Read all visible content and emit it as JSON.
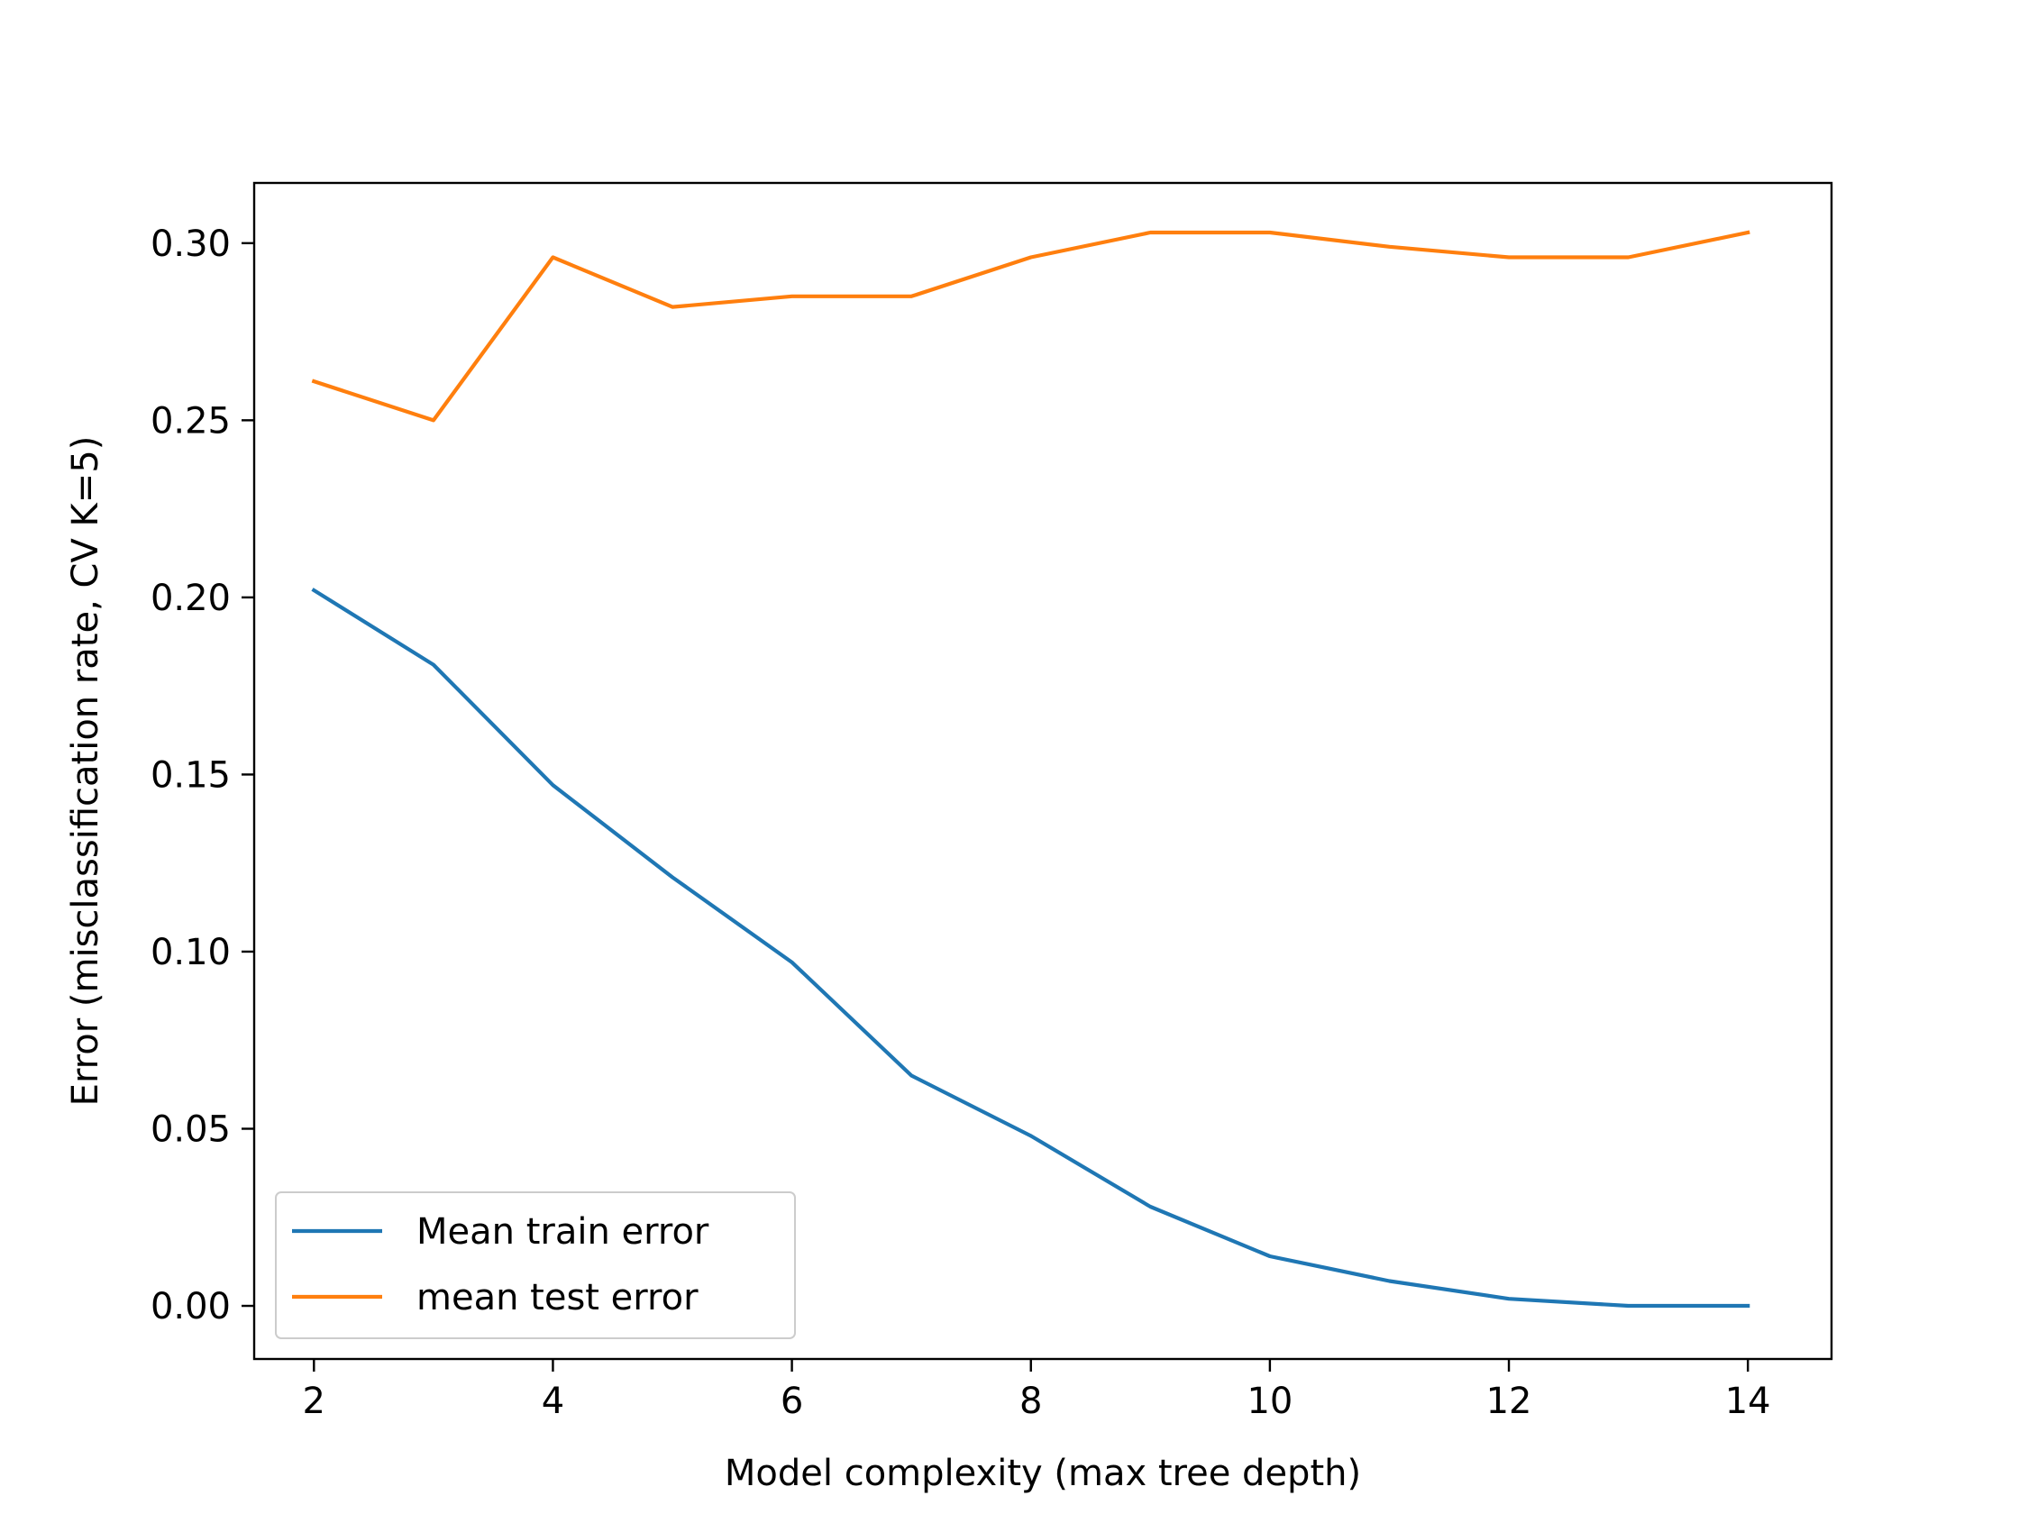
{
  "chart_data": {
    "type": "line",
    "xlabel": "Model complexity (max tree depth)",
    "ylabel": "Error (misclassification rate, CV K=5)",
    "xlim": [
      1.5,
      14.7
    ],
    "ylim": [
      -0.015,
      0.317
    ],
    "x_ticks": [
      2,
      4,
      6,
      8,
      10,
      12,
      14
    ],
    "y_ticks": [
      0.0,
      0.05,
      0.1,
      0.15,
      0.2,
      0.25,
      0.3
    ],
    "x_tick_labels": [
      "2",
      "4",
      "6",
      "8",
      "10",
      "12",
      "14"
    ],
    "y_tick_labels": [
      "0.00",
      "0.05",
      "0.10",
      "0.15",
      "0.20",
      "0.25",
      "0.30"
    ],
    "grid": false,
    "legend_position": "lower-left",
    "x": [
      2,
      3,
      4,
      5,
      6,
      7,
      8,
      9,
      10,
      11,
      12,
      13,
      14
    ],
    "series": [
      {
        "name": "Mean train error",
        "color": "#1f77b4",
        "values": [
          0.202,
          0.181,
          0.147,
          0.121,
          0.097,
          0.065,
          0.048,
          0.028,
          0.014,
          0.007,
          0.002,
          0.0,
          0.0
        ]
      },
      {
        "name": "mean test error",
        "color": "#ff7f0e",
        "values": [
          0.261,
          0.25,
          0.296,
          0.282,
          0.285,
          0.285,
          0.296,
          0.303,
          0.303,
          0.299,
          0.296,
          0.296,
          0.303
        ]
      }
    ]
  }
}
